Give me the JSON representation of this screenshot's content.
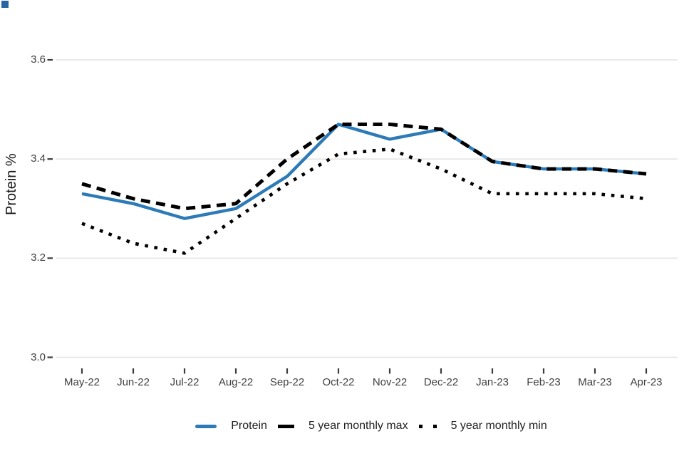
{
  "decorations": {
    "corner_square_color": "#2565a3"
  },
  "chart_data": {
    "type": "line",
    "title": "",
    "xlabel": "",
    "ylabel": "Protein %",
    "categories": [
      "May-22",
      "Jun-22",
      "Jul-22",
      "Aug-22",
      "Sep-22",
      "Oct-22",
      "Nov-22",
      "Dec-22",
      "Jan-23",
      "Feb-23",
      "Mar-23",
      "Apr-23"
    ],
    "series": [
      {
        "name": "Protein",
        "style": "solid",
        "color": "#2c7bb8",
        "values": [
          3.33,
          3.31,
          3.28,
          3.3,
          3.365,
          3.47,
          3.44,
          3.46,
          3.395,
          3.38,
          3.38,
          3.37
        ]
      },
      {
        "name": "5 year monthly max",
        "style": "dashed",
        "color": "#000000",
        "values": [
          3.35,
          3.32,
          3.3,
          3.31,
          3.4,
          3.47,
          3.47,
          3.46,
          3.395,
          3.38,
          3.38,
          3.37
        ]
      },
      {
        "name": "5 year monthly min",
        "style": "dotted",
        "color": "#000000",
        "values": [
          3.27,
          3.23,
          3.21,
          3.28,
          3.35,
          3.41,
          3.42,
          3.38,
          3.33,
          3.33,
          3.33,
          3.32
        ]
      }
    ],
    "ylim": [
      3.0,
      3.6
    ],
    "yticks": [
      3.0,
      3.2,
      3.4,
      3.6
    ],
    "ytick_labels": [
      "3.0",
      "3.2",
      "3.4",
      "3.6"
    ],
    "grid": "horizontal",
    "grid_color": "#e4e4e4",
    "tick_color": "#3c3c3c",
    "legend_position": "bottom"
  }
}
